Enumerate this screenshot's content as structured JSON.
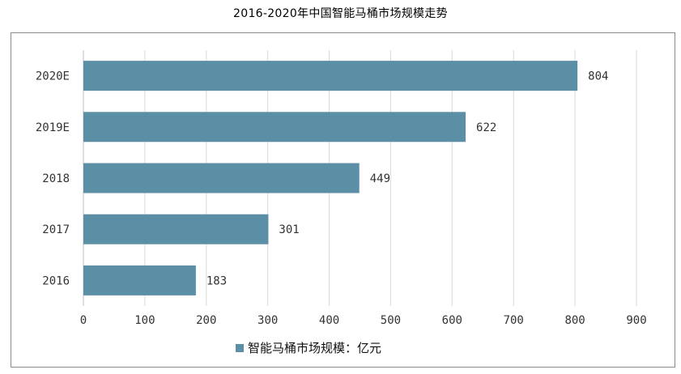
{
  "chart_data": {
    "type": "bar",
    "orientation": "horizontal",
    "title": "2016-2020年中国智能马桶市场规模走势",
    "categories": [
      "2016",
      "2017",
      "2018",
      "2019E",
      "2020E"
    ],
    "series": [
      {
        "name": "智能马桶市场规模：亿元",
        "values": [
          183,
          301,
          449,
          622,
          804
        ],
        "color": "#5b8fa6"
      }
    ],
    "xlim": [
      0,
      900
    ],
    "xticks": [
      0,
      100,
      200,
      300,
      400,
      500,
      600,
      700,
      800,
      900
    ],
    "grid": true,
    "legend_position": "bottom"
  }
}
